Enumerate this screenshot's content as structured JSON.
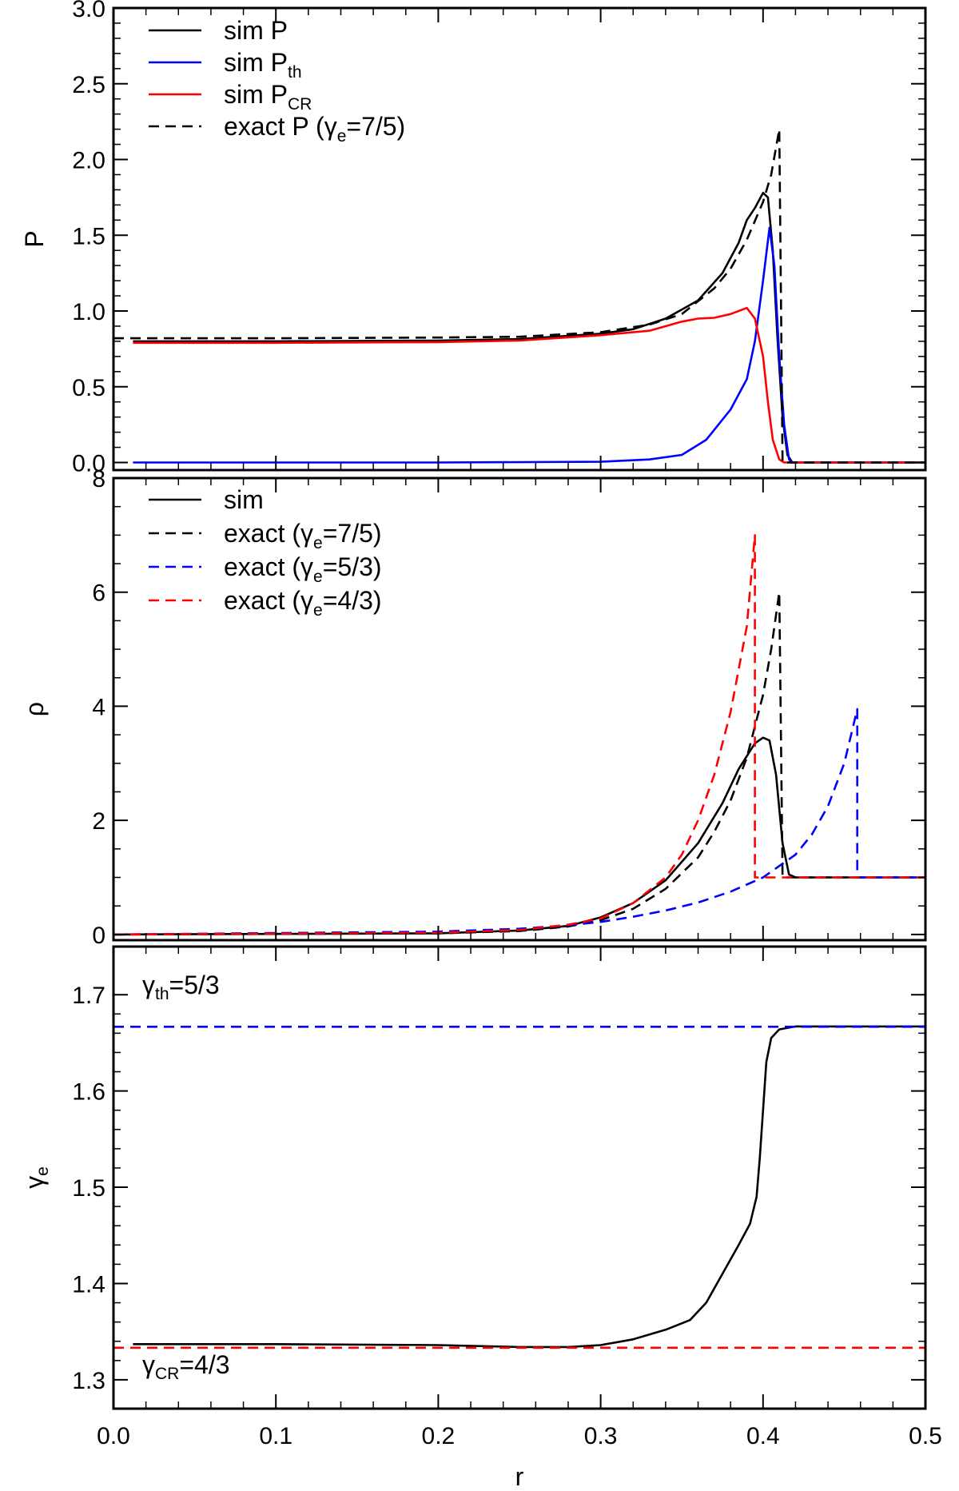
{
  "chart_data": [
    {
      "id": "pressure",
      "type": "line",
      "ylabel": "P",
      "xlim": [
        0,
        0.5
      ],
      "ylim": [
        -0.05,
        3.0
      ],
      "yticks": [
        0.0,
        0.5,
        1.0,
        1.5,
        2.0,
        2.5,
        3.0
      ],
      "ytick_labels": [
        "0.0",
        "0.5",
        "1.0",
        "1.5",
        "2.0",
        "2.5",
        "3.0"
      ],
      "legend": [
        {
          "base": "sim P",
          "sub": "",
          "tail": "",
          "color": "#000000",
          "dash": false
        },
        {
          "base": "sim P",
          "sub": "th",
          "tail": "",
          "color": "#0000ff",
          "dash": false
        },
        {
          "base": "sim P",
          "sub": "CR",
          "tail": "",
          "color": "#ff0000",
          "dash": false
        },
        {
          "base": "exact P (γ",
          "sub": "e",
          "tail": "=7/5)",
          "color": "#000000",
          "dash": true
        }
      ],
      "series": [
        {
          "name": "sim P",
          "color": "#000000",
          "dash": false,
          "points": [
            [
              0.012,
              0.8
            ],
            [
              0.1,
              0.8
            ],
            [
              0.2,
              0.805
            ],
            [
              0.25,
              0.815
            ],
            [
              0.3,
              0.85
            ],
            [
              0.32,
              0.88
            ],
            [
              0.34,
              0.95
            ],
            [
              0.36,
              1.07
            ],
            [
              0.375,
              1.25
            ],
            [
              0.385,
              1.45
            ],
            [
              0.39,
              1.6
            ],
            [
              0.395,
              1.68
            ],
            [
              0.4,
              1.78
            ],
            [
              0.403,
              1.75
            ],
            [
              0.406,
              1.4
            ],
            [
              0.409,
              0.8
            ],
            [
              0.412,
              0.3
            ],
            [
              0.415,
              0.05
            ],
            [
              0.418,
              0.0
            ],
            [
              0.5,
              0.0
            ]
          ]
        },
        {
          "name": "sim P_th",
          "color": "#0000ff",
          "dash": false,
          "points": [
            [
              0.012,
              0.0
            ],
            [
              0.2,
              0.0
            ],
            [
              0.3,
              0.005
            ],
            [
              0.33,
              0.02
            ],
            [
              0.35,
              0.05
            ],
            [
              0.365,
              0.15
            ],
            [
              0.38,
              0.35
            ],
            [
              0.39,
              0.55
            ],
            [
              0.395,
              0.8
            ],
            [
              0.4,
              1.2
            ],
            [
              0.404,
              1.55
            ],
            [
              0.407,
              1.3
            ],
            [
              0.41,
              0.7
            ],
            [
              0.413,
              0.25
            ],
            [
              0.416,
              0.02
            ],
            [
              0.418,
              0.0
            ],
            [
              0.5,
              0.0
            ]
          ]
        },
        {
          "name": "sim P_CR",
          "color": "#ff0000",
          "dash": false,
          "points": [
            [
              0.012,
              0.79
            ],
            [
              0.1,
              0.79
            ],
            [
              0.2,
              0.795
            ],
            [
              0.25,
              0.805
            ],
            [
              0.3,
              0.84
            ],
            [
              0.33,
              0.87
            ],
            [
              0.35,
              0.93
            ],
            [
              0.36,
              0.95
            ],
            [
              0.37,
              0.955
            ],
            [
              0.38,
              0.98
            ],
            [
              0.39,
              1.02
            ],
            [
              0.395,
              0.95
            ],
            [
              0.4,
              0.7
            ],
            [
              0.403,
              0.4
            ],
            [
              0.406,
              0.15
            ],
            [
              0.41,
              0.02
            ],
            [
              0.413,
              0.0
            ],
            [
              0.5,
              0.0
            ]
          ]
        },
        {
          "name": "exact P (γe=7/5)",
          "color": "#000000",
          "dash": true,
          "points": [
            [
              0.0,
              0.82
            ],
            [
              0.1,
              0.82
            ],
            [
              0.2,
              0.825
            ],
            [
              0.25,
              0.83
            ],
            [
              0.3,
              0.86
            ],
            [
              0.33,
              0.91
            ],
            [
              0.35,
              0.98
            ],
            [
              0.37,
              1.15
            ],
            [
              0.38,
              1.28
            ],
            [
              0.39,
              1.47
            ],
            [
              0.4,
              1.72
            ],
            [
              0.405,
              1.9
            ],
            [
              0.41,
              2.2
            ],
            [
              0.411,
              1.1
            ],
            [
              0.412,
              0.0
            ],
            [
              0.5,
              0.0
            ]
          ]
        }
      ]
    },
    {
      "id": "density",
      "type": "line",
      "ylabel": "ρ",
      "xlim": [
        0,
        0.5
      ],
      "ylim": [
        -0.1,
        8.0
      ],
      "yticks": [
        0,
        2,
        4,
        6,
        8
      ],
      "ytick_labels": [
        "0",
        "2",
        "4",
        "6",
        "8"
      ],
      "legend": [
        {
          "base": "sim",
          "sub": "",
          "tail": "",
          "color": "#000000",
          "dash": false
        },
        {
          "base": "exact (γ",
          "sub": "e",
          "tail": "=7/5)",
          "color": "#000000",
          "dash": true
        },
        {
          "base": "exact (γ",
          "sub": "e",
          "tail": "=5/3)",
          "color": "#0000ff",
          "dash": true
        },
        {
          "base": "exact (γ",
          "sub": "e",
          "tail": "=4/3)",
          "color": "#ff0000",
          "dash": true
        }
      ],
      "series": [
        {
          "name": "sim",
          "color": "#000000",
          "dash": false,
          "points": [
            [
              0.0,
              0.0
            ],
            [
              0.2,
              0.02
            ],
            [
              0.25,
              0.07
            ],
            [
              0.28,
              0.15
            ],
            [
              0.3,
              0.3
            ],
            [
              0.32,
              0.55
            ],
            [
              0.34,
              0.95
            ],
            [
              0.36,
              1.6
            ],
            [
              0.375,
              2.3
            ],
            [
              0.385,
              2.9
            ],
            [
              0.395,
              3.35
            ],
            [
              0.4,
              3.45
            ],
            [
              0.404,
              3.4
            ],
            [
              0.408,
              2.8
            ],
            [
              0.412,
              1.6
            ],
            [
              0.416,
              1.05
            ],
            [
              0.42,
              1.0
            ],
            [
              0.5,
              1.0
            ]
          ]
        },
        {
          "name": "exact (γe=7/5)",
          "color": "#000000",
          "dash": true,
          "points": [
            [
              0.0,
              0.0
            ],
            [
              0.2,
              0.02
            ],
            [
              0.25,
              0.06
            ],
            [
              0.28,
              0.14
            ],
            [
              0.3,
              0.25
            ],
            [
              0.32,
              0.45
            ],
            [
              0.34,
              0.8
            ],
            [
              0.36,
              1.35
            ],
            [
              0.37,
              1.8
            ],
            [
              0.38,
              2.35
            ],
            [
              0.39,
              3.1
            ],
            [
              0.4,
              4.2
            ],
            [
              0.405,
              5.0
            ],
            [
              0.41,
              6.0
            ],
            [
              0.411,
              3.5
            ],
            [
              0.412,
              1.0
            ],
            [
              0.5,
              1.0
            ]
          ]
        },
        {
          "name": "exact (γe=5/3)",
          "color": "#0000ff",
          "dash": true,
          "points": [
            [
              0.0,
              0.0
            ],
            [
              0.2,
              0.05
            ],
            [
              0.25,
              0.1
            ],
            [
              0.28,
              0.16
            ],
            [
              0.3,
              0.22
            ],
            [
              0.32,
              0.31
            ],
            [
              0.34,
              0.42
            ],
            [
              0.36,
              0.56
            ],
            [
              0.38,
              0.75
            ],
            [
              0.4,
              1.0
            ],
            [
              0.42,
              1.4
            ],
            [
              0.43,
              1.75
            ],
            [
              0.44,
              2.25
            ],
            [
              0.45,
              3.0
            ],
            [
              0.458,
              3.95
            ],
            [
              0.458,
              1.0
            ],
            [
              0.5,
              1.0
            ]
          ]
        },
        {
          "name": "exact (γe=4/3)",
          "color": "#ff0000",
          "dash": true,
          "points": [
            [
              0.0,
              0.0
            ],
            [
              0.2,
              0.03
            ],
            [
              0.25,
              0.08
            ],
            [
              0.28,
              0.17
            ],
            [
              0.3,
              0.28
            ],
            [
              0.32,
              0.55
            ],
            [
              0.34,
              1.0
            ],
            [
              0.35,
              1.4
            ],
            [
              0.36,
              2.0
            ],
            [
              0.37,
              2.8
            ],
            [
              0.38,
              3.9
            ],
            [
              0.39,
              5.4
            ],
            [
              0.395,
              7.0
            ],
            [
              0.395,
              1.0
            ],
            [
              0.5,
              1.0
            ]
          ]
        }
      ]
    },
    {
      "id": "gamma",
      "type": "line",
      "ylabel": "γ",
      "ylabel_sub": "e",
      "xlabel": "r",
      "xlim": [
        0,
        0.5
      ],
      "ylim": [
        1.27,
        1.75
      ],
      "yticks": [
        1.3,
        1.4,
        1.5,
        1.6,
        1.7
      ],
      "ytick_labels": [
        "1.3",
        "1.4",
        "1.5",
        "1.6",
        "1.7"
      ],
      "xticks": [
        0.0,
        0.1,
        0.2,
        0.3,
        0.4,
        0.5
      ],
      "xtick_labels": [
        "0.0",
        "0.1",
        "0.2",
        "0.3",
        "0.4",
        "0.5"
      ],
      "annotations": {
        "top_base": "γ",
        "top_sub": "th",
        "top_tail": "=5/3",
        "bottom_base": "γ",
        "bottom_sub": "CR",
        "bottom_tail": "=4/3"
      },
      "series": [
        {
          "name": "sim",
          "color": "#000000",
          "dash": false,
          "points": [
            [
              0.012,
              1.337
            ],
            [
              0.1,
              1.337
            ],
            [
              0.2,
              1.336
            ],
            [
              0.25,
              1.334
            ],
            [
              0.28,
              1.334
            ],
            [
              0.3,
              1.336
            ],
            [
              0.32,
              1.342
            ],
            [
              0.34,
              1.352
            ],
            [
              0.355,
              1.362
            ],
            [
              0.365,
              1.38
            ],
            [
              0.375,
              1.41
            ],
            [
              0.385,
              1.44
            ],
            [
              0.392,
              1.462
            ],
            [
              0.396,
              1.49
            ],
            [
              0.398,
              1.53
            ],
            [
              0.4,
              1.58
            ],
            [
              0.402,
              1.63
            ],
            [
              0.405,
              1.655
            ],
            [
              0.41,
              1.664
            ],
            [
              0.42,
              1.667
            ],
            [
              0.5,
              1.667
            ]
          ]
        },
        {
          "name": "γ_th=5/3",
          "color": "#0000ff",
          "dash": true,
          "points": [
            [
              0.0,
              1.6667
            ],
            [
              0.5,
              1.6667
            ]
          ]
        },
        {
          "name": "γ_CR=4/3",
          "color": "#ff0000",
          "dash": true,
          "points": [
            [
              0.0,
              1.3333
            ],
            [
              0.5,
              1.3333
            ]
          ]
        }
      ]
    }
  ]
}
